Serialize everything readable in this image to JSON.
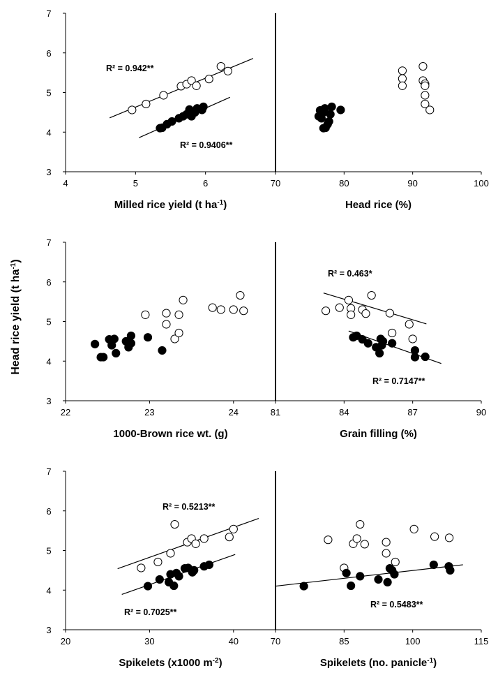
{
  "figure": {
    "y_axis_label": "Head rice yield (t ha-1)",
    "y_axis_label_parts": {
      "base": "Head rice yield (t ha",
      "sup": "-1",
      "end": ")"
    },
    "y_ticks": [
      "3",
      "4",
      "5",
      "6",
      "7"
    ]
  },
  "chart_data": [
    {
      "type": "scatter",
      "panel": "milled-rice-yield",
      "xlabel": "Milled rice yield (t ha-1)",
      "xlabel_parts": {
        "base": "Milled rice yield (t ha",
        "sup": "-1",
        "end": ")"
      },
      "xlim": [
        4,
        7
      ],
      "ylim": [
        3,
        7
      ],
      "xticks": [
        "4",
        "5",
        "6"
      ],
      "series": [
        {
          "marker": "open",
          "x": [
            4.95,
            5.15,
            5.4,
            5.65,
            5.73,
            5.8,
            5.87,
            6.05,
            6.22,
            6.32
          ],
          "y": [
            4.56,
            4.71,
            4.93,
            5.16,
            5.21,
            5.3,
            5.17,
            5.34,
            5.66,
            5.54
          ]
        },
        {
          "marker": "filled",
          "x": [
            5.35,
            5.38,
            5.45,
            5.52,
            5.62,
            5.68,
            5.73,
            5.77,
            5.8,
            5.85,
            5.88,
            5.95,
            5.97
          ],
          "y": [
            4.1,
            4.11,
            4.2,
            4.27,
            4.35,
            4.4,
            4.45,
            4.57,
            4.4,
            4.5,
            4.6,
            4.56,
            4.64
          ]
        }
      ],
      "trendlines": [
        {
          "from": [
            4.63,
            4.36
          ],
          "to": [
            6.68,
            5.86
          ],
          "label": "R² = 0.942**"
        },
        {
          "from": [
            5.05,
            3.86
          ],
          "to": [
            6.35,
            4.88
          ],
          "label": "R² = 0.9406**"
        }
      ]
    },
    {
      "type": "scatter",
      "panel": "head-rice",
      "xlabel": "Head rice (%)",
      "xlim": [
        70,
        100
      ],
      "ylim": [
        3,
        7
      ],
      "xticks": [
        "70",
        "80",
        "90",
        "100"
      ],
      "series": [
        {
          "marker": "open",
          "x": [
            88.5,
            88.5,
            88.5,
            91.5,
            91.5,
            91.8,
            91.8,
            91.8,
            91.8,
            92.5
          ],
          "y": [
            5.55,
            5.35,
            5.17,
            5.66,
            5.3,
            5.22,
            5.17,
            4.93,
            4.71,
            4.56
          ]
        },
        {
          "marker": "filled",
          "x": [
            76.3,
            76.5,
            76.7,
            76.9,
            77.0,
            77.3,
            77.6,
            77.8,
            78.0,
            78.2,
            79.5,
            77.2,
            77.0
          ],
          "y": [
            4.4,
            4.55,
            4.35,
            4.5,
            4.1,
            4.11,
            4.2,
            4.27,
            4.45,
            4.64,
            4.56,
            4.6,
            4.5
          ]
        }
      ]
    },
    {
      "type": "scatter",
      "panel": "brown-rice-weight",
      "xlabel": "1000-Brown rice wt. (g)",
      "xlim": [
        22,
        24.5
      ],
      "ylim": [
        3,
        7
      ],
      "xticks": [
        "22",
        "23",
        "24"
      ],
      "series": [
        {
          "marker": "open",
          "x": [
            22.95,
            23.2,
            23.2,
            23.3,
            23.35,
            23.35,
            23.4,
            23.75,
            23.85,
            24.0,
            24.08,
            24.12
          ],
          "y": [
            5.17,
            5.21,
            4.93,
            4.56,
            5.17,
            4.71,
            5.54,
            5.35,
            5.3,
            5.3,
            5.66,
            5.27
          ]
        },
        {
          "marker": "filled",
          "x": [
            22.35,
            22.42,
            22.45,
            22.52,
            22.55,
            22.58,
            22.6,
            22.72,
            22.75,
            22.78,
            22.98,
            23.15,
            22.78
          ],
          "y": [
            4.43,
            4.1,
            4.1,
            4.55,
            4.4,
            4.56,
            4.2,
            4.5,
            4.35,
            4.64,
            4.6,
            4.27,
            4.45
          ]
        }
      ]
    },
    {
      "type": "scatter",
      "panel": "grain-filling",
      "xlabel": "Grain filling (%)",
      "xlim": [
        81,
        90
      ],
      "ylim": [
        3,
        7
      ],
      "xticks": [
        "81",
        "84",
        "87",
        "90"
      ],
      "series": [
        {
          "marker": "open",
          "x": [
            83.2,
            83.8,
            84.2,
            84.3,
            84.3,
            84.8,
            84.95,
            85.2,
            86.0,
            86.1,
            86.85,
            87.0
          ],
          "y": [
            5.27,
            5.35,
            5.54,
            5.33,
            5.17,
            5.3,
            5.2,
            5.66,
            5.21,
            4.71,
            4.93,
            4.56
          ]
        },
        {
          "marker": "filled",
          "x": [
            84.4,
            84.55,
            84.8,
            85.05,
            85.4,
            85.55,
            85.6,
            85.65,
            85.7,
            86.1,
            87.1,
            87.1,
            87.55
          ],
          "y": [
            4.6,
            4.64,
            4.55,
            4.45,
            4.35,
            4.2,
            4.56,
            4.4,
            4.5,
            4.45,
            4.27,
            4.1,
            4.11
          ]
        }
      ],
      "trendlines": [
        {
          "from": [
            83.1,
            5.72
          ],
          "to": [
            87.6,
            4.94
          ],
          "label": "R² = 0.463*"
        },
        {
          "from": [
            84.2,
            4.76
          ],
          "to": [
            88.25,
            3.94
          ],
          "label": "R² = 0.7147**"
        }
      ]
    },
    {
      "type": "scatter",
      "panel": "spikelets-per-area",
      "xlabel": "Spikelets (x1000 m-2)",
      "xlabel_parts": {
        "base": "Spikelets (x1000 m",
        "sup": "-2",
        "end": ")"
      },
      "xlim": [
        20,
        45
      ],
      "ylim": [
        3,
        7
      ],
      "xticks": [
        "20",
        "30",
        "40"
      ],
      "series": [
        {
          "marker": "open",
          "x": [
            29,
            31,
            32.5,
            33,
            34.5,
            35,
            35.5,
            36.5,
            39.5,
            40
          ],
          "y": [
            4.56,
            4.71,
            4.93,
            5.66,
            5.21,
            5.3,
            5.17,
            5.3,
            5.34,
            5.54
          ]
        },
        {
          "marker": "filled",
          "x": [
            29.8,
            31.2,
            32.3,
            32.5,
            32.9,
            33.5,
            34.2,
            34.6,
            35.1,
            35.3,
            36.5,
            37.1,
            33.2
          ],
          "y": [
            4.1,
            4.27,
            4.2,
            4.4,
            4.11,
            4.35,
            4.55,
            4.56,
            4.45,
            4.5,
            4.6,
            4.64,
            4.43
          ]
        }
      ],
      "trendlines": [
        {
          "from": [
            26.2,
            4.54
          ],
          "to": [
            43.0,
            5.81
          ],
          "label": "R² = 0.5213**"
        },
        {
          "from": [
            26.7,
            3.89
          ],
          "to": [
            40.2,
            4.9
          ],
          "label": "R² = 0.7025**"
        }
      ]
    },
    {
      "type": "scatter",
      "panel": "spikelets-per-panicle",
      "xlabel": "Spikelets (no. panicle-1)",
      "xlabel_parts": {
        "base": "Spikelets (no. panicle",
        "sup": "-1",
        "end": ")"
      },
      "xlim": [
        70,
        115
      ],
      "ylim": [
        3,
        7
      ],
      "xticks": [
        "70",
        "85",
        "100",
        "115"
      ],
      "series": [
        {
          "marker": "open",
          "x": [
            81.5,
            85,
            87,
            87.8,
            88.5,
            89.5,
            94.2,
            94.2,
            96.2,
            100.3,
            104.8,
            108
          ],
          "y": [
            5.27,
            4.56,
            5.17,
            5.3,
            5.66,
            5.16,
            5.21,
            4.93,
            4.71,
            5.54,
            5.35,
            5.32
          ]
        },
        {
          "marker": "filled",
          "x": [
            76.2,
            85.5,
            86.5,
            88.5,
            92.5,
            94.5,
            95,
            95.5,
            96,
            104.6,
            107.9,
            108.2
          ],
          "y": [
            4.1,
            4.43,
            4.11,
            4.35,
            4.27,
            4.2,
            4.55,
            4.5,
            4.4,
            4.64,
            4.6,
            4.5
          ]
        }
      ],
      "trendlines": [
        {
          "from": [
            70.0,
            4.1
          ],
          "to": [
            111.0,
            4.64
          ],
          "label": "R² = 0.5483**"
        }
      ]
    }
  ]
}
